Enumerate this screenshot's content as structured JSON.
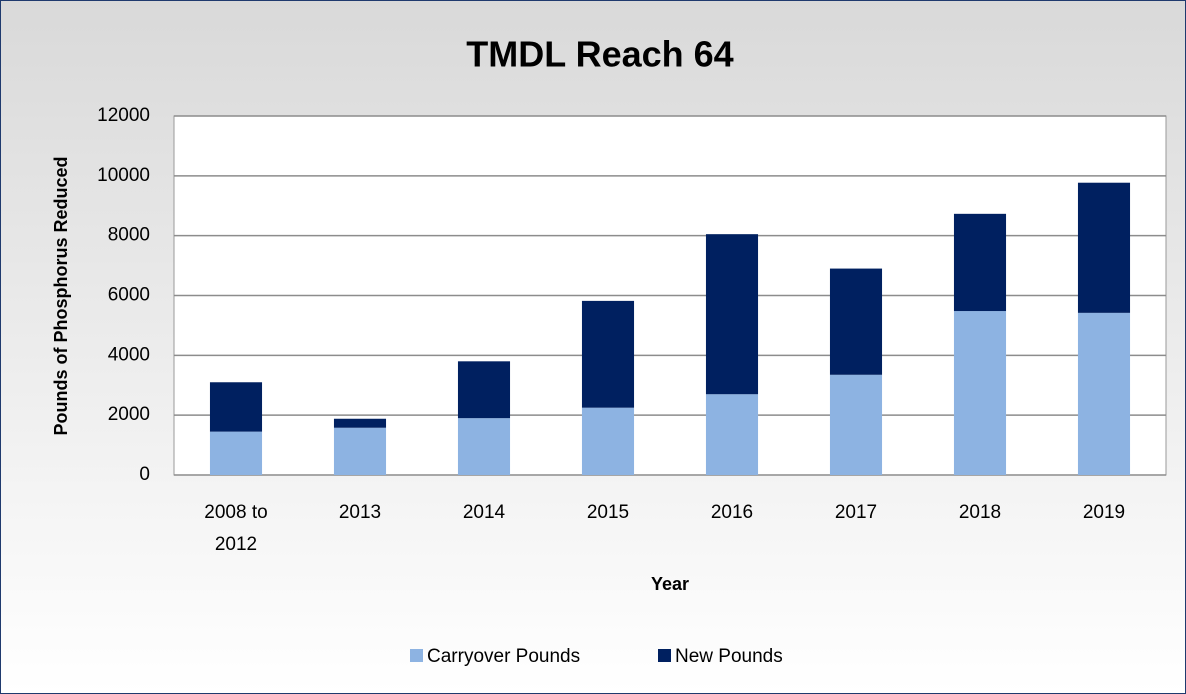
{
  "chart_data": {
    "type": "stacked_bar",
    "title": "TMDL Reach 64",
    "x_label": "Year",
    "y_label": "Pounds of Phosphorus Reduced",
    "categories": [
      "2008 to 2012",
      "2013",
      "2014",
      "2015",
      "2016",
      "2017",
      "2018",
      "2019"
    ],
    "series": [
      {
        "name": "Carryover Pounds",
        "color": "#8db3e2",
        "values": [
          1450,
          1580,
          1900,
          2250,
          2700,
          3350,
          5480,
          5420
        ]
      },
      {
        "name": "New Pounds",
        "color": "#002060",
        "values": [
          1650,
          300,
          1900,
          3570,
          5350,
          3550,
          3250,
          4350
        ]
      }
    ],
    "ylim": [
      0,
      12000
    ],
    "yticks": [
      0,
      2000,
      4000,
      6000,
      8000,
      10000,
      12000
    ],
    "grid": true,
    "legend": "bottom"
  }
}
